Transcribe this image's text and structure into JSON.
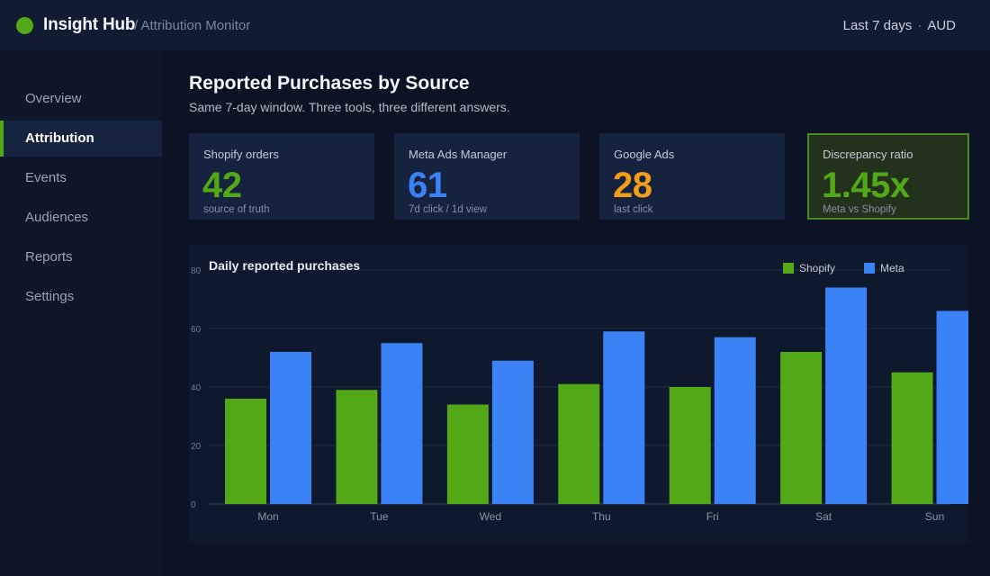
{
  "header": {
    "brand": "Insight Hub",
    "breadcrumb": "/ Attribution Monitor",
    "range": "Last 7 days",
    "separator": "·",
    "currency": "AUD"
  },
  "sidebar": {
    "items": [
      {
        "label": "Overview",
        "active": false
      },
      {
        "label": "Attribution",
        "active": true
      },
      {
        "label": "Events",
        "active": false
      },
      {
        "label": "Audiences",
        "active": false
      },
      {
        "label": "Reports",
        "active": false
      },
      {
        "label": "Settings",
        "active": false
      }
    ]
  },
  "main": {
    "title": "Reported Purchases by Source",
    "subtitle": "Same 7-day window. Three tools, three different answers."
  },
  "cards": [
    {
      "label": "Shopify orders",
      "value": "42",
      "note": "source of truth",
      "color": "#52a817"
    },
    {
      "label": "Meta Ads Manager",
      "value": "61",
      "note": "7d click / 1d view",
      "color": "#3b82f6"
    },
    {
      "label": "Google Ads",
      "value": "28",
      "note": "last click",
      "color": "#f29e1a"
    },
    {
      "label": "Discrepancy ratio",
      "value": "1.45x",
      "note": "Meta vs Shopify",
      "color": "#52a817"
    }
  ],
  "colors": {
    "accent": "#52a817",
    "shopify": "#52a817",
    "meta": "#3b82f6",
    "google": "#f29e1a"
  },
  "chart_data": {
    "type": "bar",
    "title": "Daily reported purchases",
    "categories": [
      "Mon",
      "Tue",
      "Wed",
      "Thu",
      "Fri",
      "Sat",
      "Sun"
    ],
    "series": [
      {
        "name": "Shopify",
        "values": [
          36,
          39,
          34,
          41,
          40,
          52,
          45
        ]
      },
      {
        "name": "Meta",
        "values": [
          52,
          55,
          49,
          59,
          57,
          74,
          66
        ]
      }
    ],
    "ylim": [
      0,
      80
    ],
    "yticks": [
      0,
      20,
      40,
      60,
      80
    ],
    "grid": true,
    "legend_position": "top-right"
  }
}
